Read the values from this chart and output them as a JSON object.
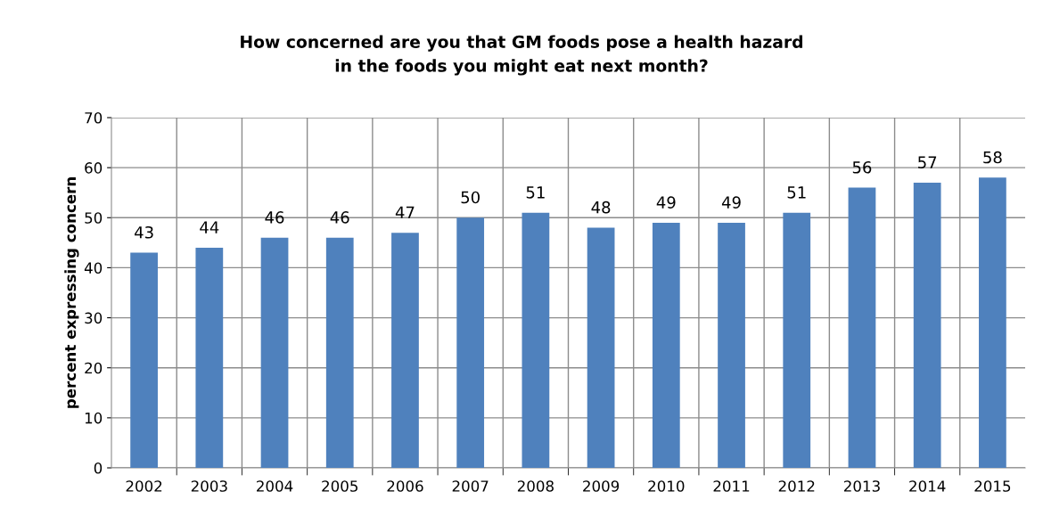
{
  "chart_data": {
    "type": "bar",
    "title": "How concerned are you that GM foods pose a health hazard\nin the foods you might eat next month?",
    "ylabel": "percent expressing concern",
    "categories": [
      "2002",
      "2003",
      "2004",
      "2005",
      "2006",
      "2007",
      "2008",
      "2009",
      "2010",
      "2011",
      "2012",
      "2013",
      "2014",
      "2015"
    ],
    "values": [
      43,
      44,
      46,
      46,
      47,
      50,
      51,
      48,
      49,
      49,
      51,
      56,
      57,
      58
    ],
    "color": "#4f81bd",
    "ylim": [
      0,
      70
    ],
    "yticks": [
      0,
      10,
      20,
      30,
      40,
      50,
      60,
      70
    ],
    "grid": true,
    "data_labels": true
  }
}
